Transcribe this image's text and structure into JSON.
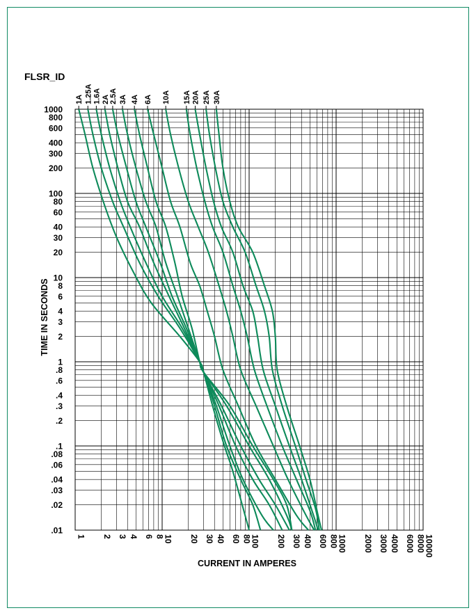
{
  "chart_data": {
    "type": "line",
    "title": "FLSR_ID",
    "xlabel": "CURRENT IN AMPERES",
    "ylabel": "TIME IN SECONDS",
    "x_scale": "log",
    "y_scale": "log",
    "xlim": [
      1,
      10000
    ],
    "ylim": [
      0.01,
      1000
    ],
    "grid": true,
    "x_ticks": [
      "1",
      "2",
      "3",
      "4",
      "6",
      "8",
      "10",
      "20",
      "30",
      "40",
      "60",
      "80",
      "100",
      "200",
      "300",
      "400",
      "600",
      "800",
      "1000",
      "2000",
      "3000",
      "4000",
      "6000",
      "8000",
      "10000"
    ],
    "y_ticks": [
      "1000",
      "800",
      "600",
      "400",
      "300",
      "200",
      "100",
      "80",
      "60",
      "40",
      "30",
      "20",
      "10",
      "8",
      "6",
      "4",
      "3",
      "2",
      "1",
      ".8",
      ".6",
      ".4",
      ".3",
      ".2",
      ".1",
      ".08",
      ".06",
      ".04",
      ".03",
      ".02",
      ".01"
    ],
    "series": [
      {
        "name": "1A",
        "points": [
          [
            1.1,
            1000
          ],
          [
            1.3,
            500
          ],
          [
            1.6,
            200
          ],
          [
            2.2,
            70
          ],
          [
            3,
            30
          ],
          [
            4.6,
            12
          ],
          [
            7.5,
            5
          ],
          [
            16,
            2
          ],
          [
            27,
            1
          ],
          [
            30,
            0.75
          ],
          [
            38,
            0.3
          ],
          [
            52,
            0.1
          ],
          [
            65,
            0.05
          ],
          [
            100,
            0.01
          ]
        ]
      },
      {
        "name": "1.25A",
        "points": [
          [
            1.4,
            1000
          ],
          [
            1.6,
            500
          ],
          [
            2,
            200
          ],
          [
            2.7,
            80
          ],
          [
            3.6,
            40
          ],
          [
            5.5,
            15
          ],
          [
            9,
            6
          ],
          [
            16,
            2.5
          ],
          [
            27,
            1
          ],
          [
            30,
            0.75
          ],
          [
            40,
            0.3
          ],
          [
            55,
            0.1
          ],
          [
            80,
            0.04
          ],
          [
            110,
            0.02
          ],
          [
            135,
            0.01
          ]
        ]
      },
      {
        "name": "1.6A",
        "points": [
          [
            1.75,
            1000
          ],
          [
            2,
            500
          ],
          [
            2.5,
            200
          ],
          [
            3.3,
            80
          ],
          [
            4.3,
            40
          ],
          [
            6.5,
            15
          ],
          [
            10,
            6
          ],
          [
            17,
            2.5
          ],
          [
            27,
            1
          ],
          [
            30,
            0.75
          ],
          [
            42,
            0.3
          ],
          [
            60,
            0.1
          ],
          [
            85,
            0.04
          ],
          [
            140,
            0.015
          ],
          [
            190,
            0.01
          ]
        ]
      },
      {
        "name": "2A",
        "points": [
          [
            2.2,
            1000
          ],
          [
            2.5,
            500
          ],
          [
            3.1,
            200
          ],
          [
            4,
            80
          ],
          [
            5.5,
            40
          ],
          [
            8,
            15
          ],
          [
            12,
            6
          ],
          [
            18,
            2.5
          ],
          [
            27,
            1
          ],
          [
            30,
            0.75
          ],
          [
            45,
            0.3
          ],
          [
            70,
            0.1
          ],
          [
            110,
            0.04
          ],
          [
            170,
            0.02
          ],
          [
            240,
            0.01
          ]
        ]
      },
      {
        "name": "2.5A",
        "points": [
          [
            2.7,
            1000
          ],
          [
            3.1,
            500
          ],
          [
            3.9,
            200
          ],
          [
            5,
            80
          ],
          [
            6.5,
            40
          ],
          [
            9.5,
            15
          ],
          [
            13,
            6
          ],
          [
            19,
            2.5
          ],
          [
            27,
            1
          ],
          [
            30,
            0.75
          ],
          [
            48,
            0.3
          ],
          [
            80,
            0.1
          ],
          [
            130,
            0.04
          ],
          [
            200,
            0.02
          ],
          [
            290,
            0.01
          ]
        ]
      },
      {
        "name": "3A",
        "points": [
          [
            3.5,
            1000
          ],
          [
            4,
            500
          ],
          [
            5,
            200
          ],
          [
            6.5,
            80
          ],
          [
            8.5,
            40
          ],
          [
            11,
            15
          ],
          [
            15,
            6
          ],
          [
            20,
            2.5
          ],
          [
            27,
            1
          ],
          [
            30,
            0.75
          ],
          [
            55,
            0.3
          ],
          [
            100,
            0.1
          ],
          [
            170,
            0.04
          ],
          [
            270,
            0.015
          ],
          [
            310,
            0.01
          ]
        ]
      },
      {
        "name": "4A",
        "points": [
          [
            4.8,
            1000
          ],
          [
            5.5,
            500
          ],
          [
            6.8,
            200
          ],
          [
            8.5,
            80
          ],
          [
            11,
            40
          ],
          [
            14,
            15
          ],
          [
            17,
            6
          ],
          [
            22,
            2.5
          ],
          [
            27,
            1
          ],
          [
            30,
            0.75
          ],
          [
            60,
            0.3
          ],
          [
            110,
            0.1
          ],
          [
            190,
            0.04
          ],
          [
            270,
            0.02
          ],
          [
            310,
            0.01
          ]
        ]
      },
      {
        "name": "6A",
        "points": [
          [
            6.8,
            1000
          ],
          [
            8,
            500
          ],
          [
            10,
            200
          ],
          [
            12.5,
            80
          ],
          [
            16,
            40
          ],
          [
            21,
            15
          ],
          [
            27,
            8
          ],
          [
            33,
            4
          ],
          [
            40,
            2
          ],
          [
            50,
            0.8
          ],
          [
            75,
            0.3
          ],
          [
            120,
            0.1
          ],
          [
            200,
            0.04
          ],
          [
            350,
            0.015
          ],
          [
            480,
            0.01
          ]
        ]
      },
      {
        "name": "10A",
        "points": [
          [
            11,
            1000
          ],
          [
            12.5,
            500
          ],
          [
            15.5,
            200
          ],
          [
            20,
            80
          ],
          [
            26,
            40
          ],
          [
            34,
            20
          ],
          [
            45,
            8
          ],
          [
            55,
            4
          ],
          [
            65,
            2
          ],
          [
            80,
            0.8
          ],
          [
            120,
            0.3
          ],
          [
            190,
            0.1
          ],
          [
            280,
            0.04
          ],
          [
            450,
            0.015
          ],
          [
            560,
            0.01
          ]
        ]
      },
      {
        "name": "15A",
        "points": [
          [
            19,
            1000
          ],
          [
            21,
            500
          ],
          [
            25,
            200
          ],
          [
            31,
            80
          ],
          [
            38,
            40
          ],
          [
            50,
            20
          ],
          [
            65,
            8
          ],
          [
            80,
            4
          ],
          [
            95,
            2
          ],
          [
            115,
            0.8
          ],
          [
            160,
            0.3
          ],
          [
            240,
            0.1
          ],
          [
            350,
            0.04
          ],
          [
            500,
            0.017
          ],
          [
            580,
            0.01
          ]
        ]
      },
      {
        "name": "20A",
        "points": [
          [
            24,
            1000
          ],
          [
            27,
            500
          ],
          [
            32,
            200
          ],
          [
            39,
            80
          ],
          [
            48,
            40
          ],
          [
            65,
            20
          ],
          [
            85,
            8
          ],
          [
            110,
            4
          ],
          [
            125,
            2
          ],
          [
            145,
            0.8
          ],
          [
            200,
            0.3
          ],
          [
            290,
            0.1
          ],
          [
            400,
            0.04
          ],
          [
            550,
            0.015
          ],
          [
            620,
            0.01
          ]
        ]
      },
      {
        "name": "25A",
        "points": [
          [
            32,
            1000
          ],
          [
            35,
            500
          ],
          [
            41,
            200
          ],
          [
            50,
            80
          ],
          [
            65,
            40
          ],
          [
            90,
            20
          ],
          [
            120,
            8
          ],
          [
            150,
            4
          ],
          [
            170,
            2
          ],
          [
            185,
            0.8
          ],
          [
            240,
            0.3
          ],
          [
            340,
            0.1
          ],
          [
            450,
            0.04
          ],
          [
            580,
            0.018
          ],
          [
            640,
            0.01
          ]
        ]
      },
      {
        "name": "30A",
        "points": [
          [
            42,
            1000
          ],
          [
            45,
            500
          ],
          [
            50,
            200
          ],
          [
            60,
            80
          ],
          [
            75,
            40
          ],
          [
            110,
            20
          ],
          [
            150,
            8
          ],
          [
            185,
            4
          ],
          [
            200,
            2
          ],
          [
            210,
            0.8
          ],
          [
            270,
            0.3
          ],
          [
            380,
            0.1
          ],
          [
            500,
            0.04
          ],
          [
            620,
            0.015
          ],
          [
            680,
            0.01
          ]
        ]
      }
    ]
  },
  "colors": {
    "curve": "#0d8a5a",
    "frame": "#0f8a63",
    "grid": "#000000"
  }
}
